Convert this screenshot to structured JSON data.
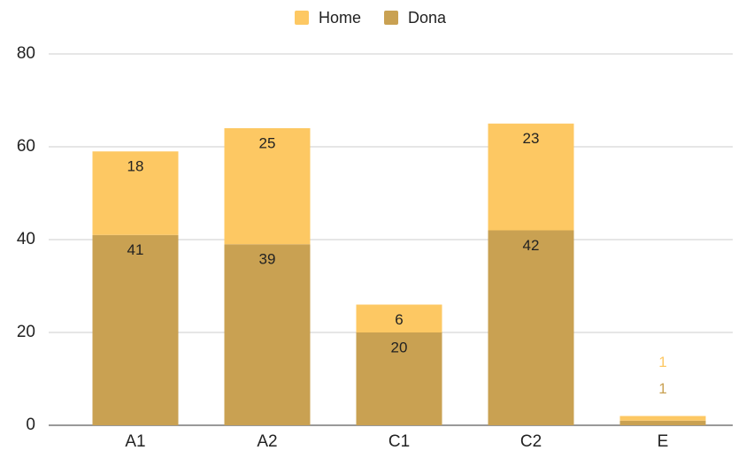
{
  "chart_data": {
    "type": "stacked_bar",
    "categories": [
      "A1",
      "A2",
      "C1",
      "C2",
      "E"
    ],
    "series": [
      {
        "name": "Dona",
        "color": "#c9a152",
        "values": [
          41,
          39,
          20,
          42,
          1
        ]
      },
      {
        "name": "Home",
        "color": "#fdc863",
        "values": [
          18,
          25,
          6,
          23,
          1
        ]
      }
    ],
    "ylim": [
      0,
      80
    ],
    "yticks": [
      0,
      20,
      40,
      60,
      80
    ],
    "grid": true,
    "legend": "top"
  }
}
